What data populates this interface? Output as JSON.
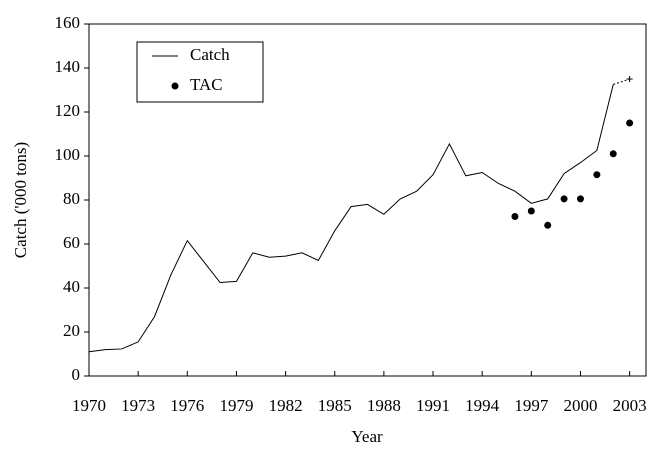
{
  "chart_data": {
    "type": "line",
    "x_label": "Year",
    "y_label": "Catch ('000 tons)",
    "x": [
      1970,
      1971,
      1972,
      1973,
      1974,
      1975,
      1976,
      1977,
      1978,
      1979,
      1980,
      1981,
      1982,
      1983,
      1984,
      1985,
      1986,
      1987,
      1988,
      1989,
      1990,
      1991,
      1992,
      1993,
      1994,
      1995,
      1996,
      1997,
      1998,
      1999,
      2000,
      2001,
      2002,
      2003
    ],
    "series": [
      {
        "name": "Catch",
        "color": "#000000",
        "style": "line",
        "values": [
          11,
          12,
          12.3,
          15.5,
          27,
          46,
          61.5,
          52,
          42.5,
          43,
          56,
          54,
          54.5,
          56,
          52.5,
          66,
          77,
          78,
          73.5,
          80.5,
          84,
          91.5,
          105.5,
          91,
          92.5,
          87.5,
          84,
          78.5,
          80.5,
          92,
          97,
          102.5,
          132.5,
          null
        ]
      },
      {
        "name": "TAC",
        "color": "#000000",
        "style": "dots",
        "values": [
          null,
          null,
          null,
          null,
          null,
          null,
          null,
          null,
          null,
          null,
          null,
          null,
          null,
          null,
          null,
          null,
          null,
          null,
          null,
          null,
          null,
          null,
          null,
          null,
          null,
          null,
          72.5,
          75,
          68.5,
          80.5,
          80.5,
          91.5,
          101,
          115
        ]
      },
      {
        "color": "#000000",
        "style": "dashed",
        "values": [
          null,
          null,
          null,
          null,
          null,
          null,
          null,
          null,
          null,
          null,
          null,
          null,
          null,
          null,
          null,
          null,
          null,
          null,
          null,
          null,
          null,
          null,
          null,
          null,
          null,
          null,
          null,
          null,
          null,
          null,
          null,
          null,
          132.5,
          135
        ]
      }
    ],
    "xlim": [
      1970,
      2004
    ],
    "xticks": [
      1970,
      1973,
      1976,
      1979,
      1982,
      1985,
      1988,
      1991,
      1994,
      1997,
      2000,
      2003
    ],
    "ylim": [
      0,
      160
    ],
    "yticks": [
      0,
      20,
      40,
      60,
      80,
      100,
      120,
      140,
      160
    ],
    "legend": "upper left"
  }
}
